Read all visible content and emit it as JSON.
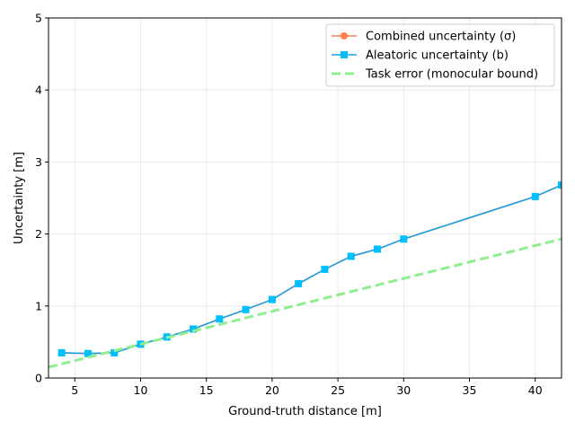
{
  "chart_data": {
    "type": "line",
    "xlabel": "Ground-truth distance [m]",
    "ylabel": "Uncertainty [m]",
    "xlim": [
      3,
      42
    ],
    "ylim": [
      0,
      5
    ],
    "xticks": [
      5,
      10,
      15,
      20,
      25,
      30,
      35,
      40
    ],
    "yticks": [
      0,
      1,
      2,
      3,
      4,
      5
    ],
    "grid": true,
    "legend_position": "top-right",
    "series": [
      {
        "name": "Combined uncertainty (σ)",
        "color": "#ff7f50",
        "marker": "circle",
        "style": "solid",
        "x": [
          4,
          6,
          8,
          10,
          12,
          14,
          16,
          18,
          20,
          22,
          24,
          26,
          28,
          30,
          40,
          42
        ],
        "y": [
          0.35,
          0.34,
          0.35,
          0.47,
          0.57,
          0.68,
          0.82,
          0.95,
          1.09,
          1.31,
          1.51,
          1.69,
          1.79,
          1.93,
          2.52,
          2.68
        ]
      },
      {
        "name": "Aleatoric uncertainty (b)",
        "color": "#00bfff",
        "line_color": "#1ba1e2",
        "marker": "square",
        "style": "solid",
        "x": [
          4,
          6,
          8,
          10,
          12,
          14,
          16,
          18,
          20,
          22,
          24,
          26,
          28,
          30,
          40,
          42
        ],
        "y": [
          0.35,
          0.34,
          0.35,
          0.47,
          0.57,
          0.68,
          0.82,
          0.95,
          1.09,
          1.31,
          1.51,
          1.69,
          1.79,
          1.93,
          2.52,
          2.68
        ]
      },
      {
        "name": "Task error (monocular bound)",
        "color": "#90ee90",
        "marker": "none",
        "style": "dashed",
        "x": [
          3,
          42
        ],
        "y": [
          0.15,
          1.93
        ]
      }
    ]
  }
}
